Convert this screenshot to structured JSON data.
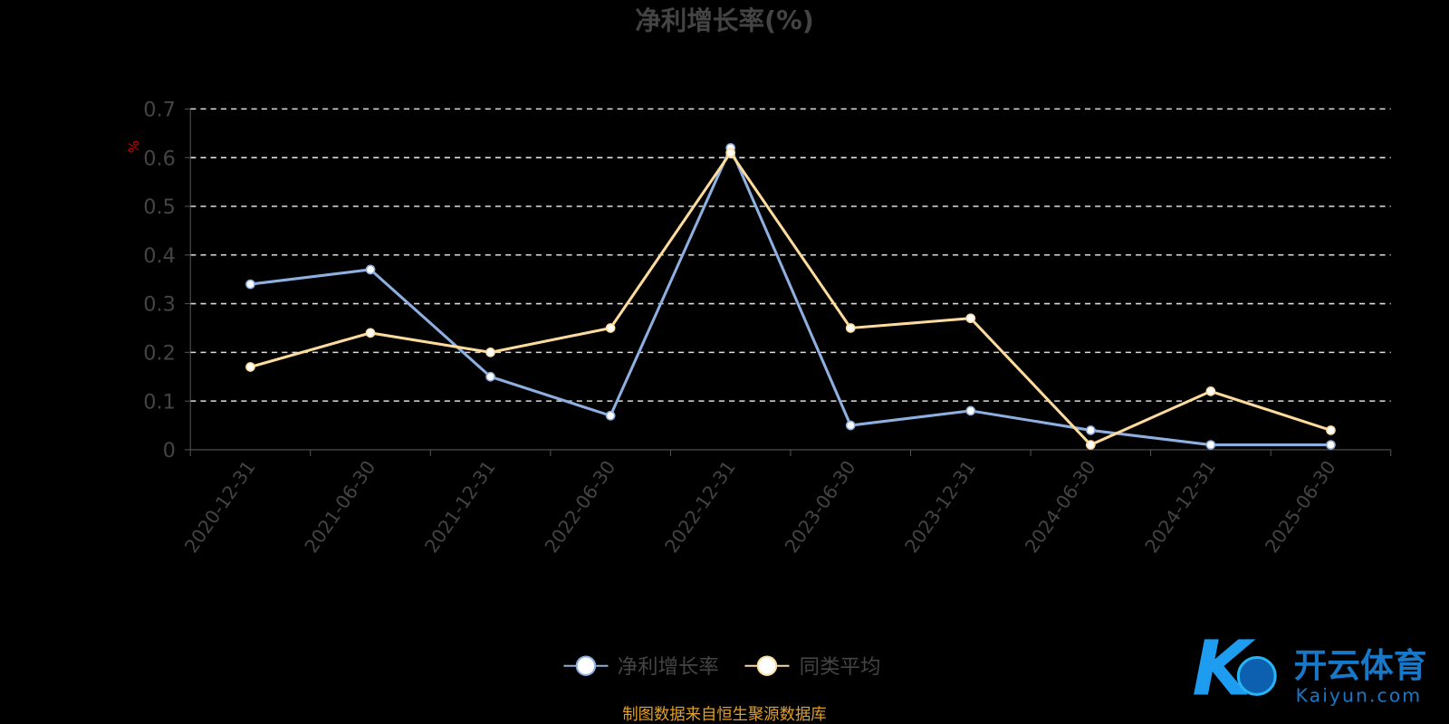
{
  "chart_data": {
    "type": "line",
    "title": "净利增长率(%)",
    "ylabel": "%",
    "xlabel": "",
    "categories": [
      "2020-12-31",
      "2021-06-30",
      "2021-12-31",
      "2022-06-30",
      "2022-12-31",
      "2023-06-30",
      "2023-12-31",
      "2024-06-30",
      "2024-12-31",
      "2025-06-30"
    ],
    "ylim": [
      0,
      0.7
    ],
    "yticks": [
      "0",
      "0.1",
      "0.2",
      "0.3",
      "0.4",
      "0.5",
      "0.6",
      "0.7"
    ],
    "grid": true,
    "legend": "bottom",
    "series": [
      {
        "name": "净利增长率",
        "color": "#8eb0e0",
        "values": [
          0.34,
          0.37,
          0.15,
          0.07,
          0.62,
          0.05,
          0.08,
          0.04,
          0.01,
          0.01
        ]
      },
      {
        "name": "同类平均",
        "color": "#fddb9c",
        "values": [
          0.17,
          0.24,
          0.2,
          0.25,
          0.61,
          0.25,
          0.27,
          0.01,
          0.12,
          0.04
        ]
      }
    ]
  },
  "footer": {
    "source": "制图数据来自恒生聚源数据库"
  },
  "watermark": {
    "brand": "开云体育",
    "domain": "Kaiyun.com"
  },
  "colors": {
    "axis": "#555555",
    "text": "#444444",
    "source": "#e2a029",
    "unit": "#cc0000"
  }
}
